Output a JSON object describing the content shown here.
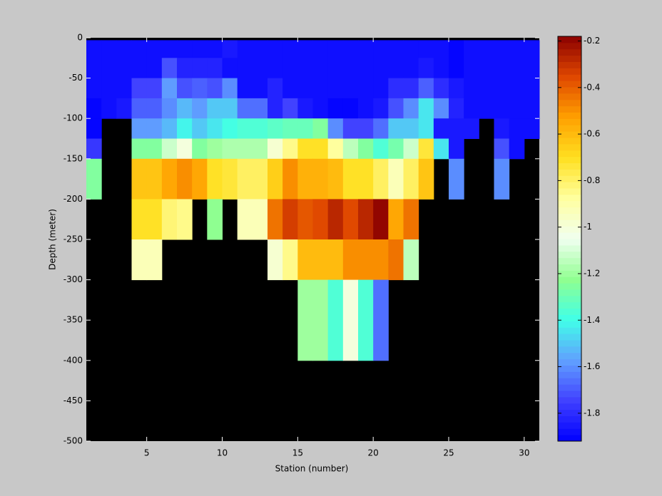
{
  "chart_data": {
    "type": "heatmap",
    "xlabel": "Station (number)",
    "ylabel": "Depth (meter)",
    "xlim": [
      1,
      31
    ],
    "ylim": [
      -500,
      0
    ],
    "xticks": [
      5,
      10,
      15,
      20,
      25,
      30
    ],
    "yticks": [
      0,
      -50,
      -100,
      -150,
      -200,
      -250,
      -300,
      -350,
      -400,
      -450,
      -500
    ],
    "x_edges": [
      1,
      2,
      3,
      4,
      5,
      6,
      7,
      8,
      9,
      10,
      11,
      12,
      13,
      14,
      15,
      16,
      17,
      18,
      19,
      20,
      21,
      22,
      23,
      24,
      25,
      26,
      27,
      28,
      29,
      30,
      31
    ],
    "y_edges": [
      -3,
      -25,
      -50,
      -75,
      -100,
      -125,
      -150,
      -200,
      -250,
      -300,
      -400
    ],
    "z": [
      [
        -1.88,
        -1.88,
        -1.88,
        -1.88,
        -1.88,
        -1.88,
        -1.88,
        -1.88,
        -1.88,
        -1.86,
        -1.88,
        -1.88,
        -1.88,
        -1.88,
        -1.88,
        -1.88,
        -1.88,
        -1.88,
        -1.88,
        -1.88,
        -1.88,
        -1.88,
        -1.88,
        -1.88,
        -1.9,
        -1.88,
        -1.88,
        -1.88,
        -1.88,
        -1.88
      ],
      [
        -1.88,
        -1.88,
        -1.88,
        -1.88,
        -1.88,
        -1.72,
        -1.82,
        -1.82,
        -1.82,
        -1.88,
        -1.88,
        -1.88,
        -1.88,
        -1.88,
        -1.88,
        -1.88,
        -1.88,
        -1.88,
        -1.88,
        -1.88,
        -1.88,
        -1.88,
        -1.85,
        -1.88,
        -1.9,
        -1.88,
        -1.88,
        -1.88,
        -1.88,
        -1.88
      ],
      [
        -1.88,
        -1.88,
        -1.88,
        -1.75,
        -1.75,
        -1.58,
        -1.72,
        -1.68,
        -1.72,
        -1.62,
        -1.88,
        -1.88,
        -1.83,
        -1.88,
        -1.88,
        -1.88,
        -1.88,
        -1.88,
        -1.88,
        -1.88,
        -1.8,
        -1.8,
        -1.7,
        -1.8,
        -1.85,
        -1.88,
        -1.88,
        -1.88,
        -1.88,
        -1.88
      ],
      [
        -1.9,
        -1.88,
        -1.85,
        -1.68,
        -1.68,
        -1.62,
        -1.52,
        -1.57,
        -1.5,
        -1.5,
        -1.65,
        -1.65,
        -1.83,
        -1.75,
        -1.85,
        -1.88,
        -1.92,
        -1.92,
        -1.88,
        -1.85,
        -1.72,
        -1.62,
        -1.45,
        -1.62,
        -1.82,
        -1.88,
        -1.88,
        -1.88,
        -1.88,
        -1.88
      ],
      [
        -1.9,
        null,
        null,
        -1.57,
        -1.57,
        -1.52,
        -1.42,
        -1.5,
        -1.45,
        -1.4,
        -1.35,
        -1.35,
        -1.33,
        -1.3,
        -1.3,
        -1.25,
        -1.6,
        -1.75,
        -1.75,
        -1.65,
        -1.5,
        -1.5,
        -1.45,
        -1.85,
        -1.85,
        -1.85,
        null,
        -1.85,
        -1.88,
        -1.88
      ],
      [
        -1.78,
        null,
        null,
        -1.25,
        -1.25,
        -1.12,
        -1.0,
        -1.25,
        -1.2,
        -1.18,
        -1.18,
        -1.18,
        -0.98,
        -0.85,
        -0.72,
        -0.72,
        -0.88,
        -1.15,
        -1.25,
        -1.35,
        -1.28,
        -1.12,
        -0.75,
        -1.45,
        -1.85,
        null,
        null,
        -1.72,
        -1.88,
        null
      ],
      [
        -1.25,
        null,
        null,
        -0.62,
        -0.62,
        -0.55,
        -0.5,
        -0.55,
        -0.7,
        -0.75,
        -0.8,
        -0.8,
        -0.65,
        -0.5,
        -0.58,
        -0.58,
        -0.6,
        -0.7,
        -0.7,
        -0.8,
        -0.92,
        -0.8,
        -0.62,
        null,
        -1.62,
        null,
        null,
        -1.62,
        null,
        null
      ],
      [
        null,
        null,
        null,
        -0.7,
        -0.7,
        -0.82,
        -0.85,
        null,
        -1.22,
        null,
        -0.92,
        -0.92,
        -0.45,
        -0.32,
        -0.38,
        -0.35,
        -0.28,
        -0.35,
        -0.27,
        -0.2,
        -0.55,
        -0.45,
        null,
        null,
        null,
        null,
        null,
        null,
        null,
        null
      ],
      [
        null,
        null,
        null,
        -0.92,
        -0.92,
        null,
        null,
        null,
        null,
        null,
        null,
        null,
        -0.98,
        -0.85,
        -0.6,
        -0.6,
        -0.6,
        -0.48,
        -0.5,
        -0.5,
        -0.45,
        -1.15,
        null,
        null,
        null,
        null,
        null,
        null,
        null,
        null
      ],
      [
        null,
        null,
        null,
        null,
        null,
        null,
        null,
        null,
        null,
        null,
        null,
        null,
        null,
        null,
        -1.2,
        -1.2,
        -1.35,
        -1.0,
        -1.35,
        -1.65,
        null,
        null,
        null,
        null,
        null,
        null,
        null,
        null,
        null,
        null
      ]
    ],
    "clim": [
      -1.92,
      -0.18
    ],
    "colorbar_ticks": [
      -0.2,
      -0.4,
      -0.6,
      -0.8,
      -1,
      -1.2,
      -1.4,
      -1.6,
      -1.8
    ],
    "colormap": [
      "#0000ff",
      "#4040ff",
      "#60a0ff",
      "#40ffe8",
      "#90ff90",
      "#f0fff0",
      "#ffffa0",
      "#ffe020",
      "#ffa000",
      "#e04800",
      "#8b0000"
    ],
    "missing_color": "#000000"
  }
}
